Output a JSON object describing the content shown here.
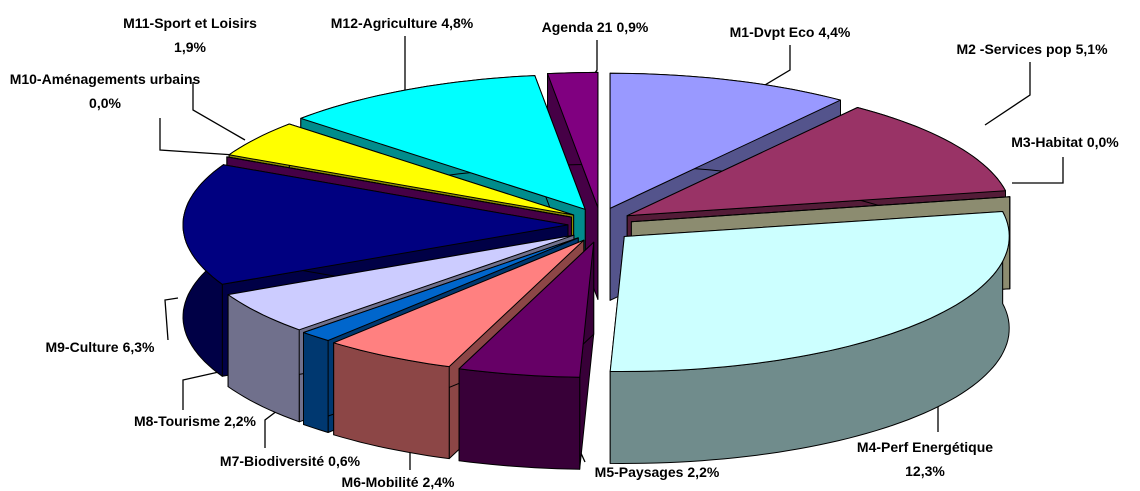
{
  "chart_data": {
    "type": "pie3d",
    "categories": [
      "M1-Dvpt Eco",
      "M2 -Services pop",
      "M3-Habitat",
      "M4-Perf Energétique",
      "M5-Paysages",
      "M6-Mobilité",
      "M7-Biodiversité",
      "M8-Tourisme",
      "M9-Culture",
      "M10-Aménagements urbains",
      "M11-Sport et Loisirs",
      "M12-Agriculture",
      "Agenda 21"
    ],
    "values": [
      4.4,
      5.1,
      0.0,
      12.3,
      2.2,
      2.4,
      0.6,
      2.2,
      6.3,
      0.0,
      1.9,
      4.8,
      0.9
    ],
    "value_labels": [
      "4,4%",
      "5,1%",
      "0,0%",
      "12,3%",
      "2,2%",
      "2,4%",
      "0,6%",
      "2,2%",
      "6,3%",
      "0,0%",
      "1,9%",
      "4,8%",
      "0,9%"
    ],
    "colors": [
      "#9999ff",
      "#993366",
      "#ffffcc",
      "#ccffff",
      "#660066",
      "#ff8080",
      "#0066cc",
      "#ccccff",
      "#000080",
      "#800080",
      "#ffff00",
      "#00ffff",
      "#800080"
    ]
  }
}
